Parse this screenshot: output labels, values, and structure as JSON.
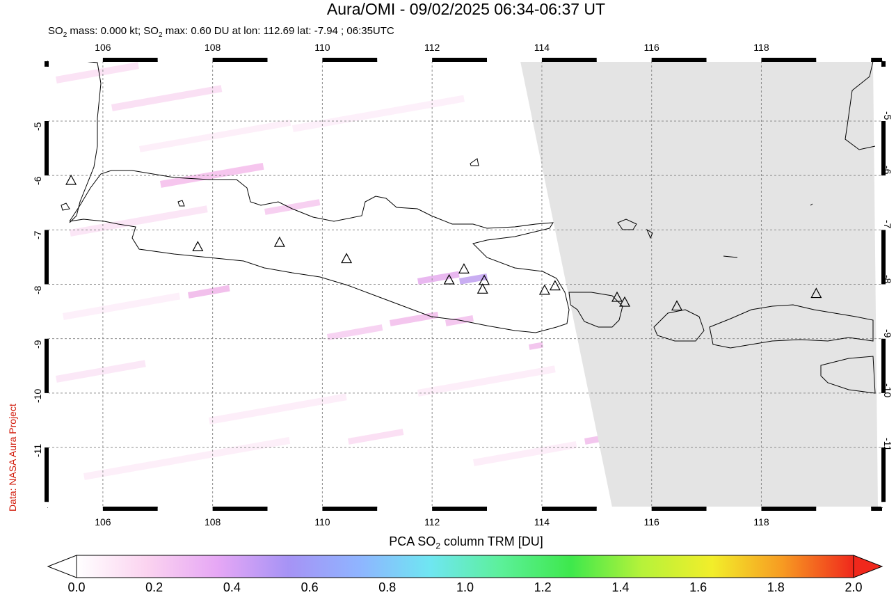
{
  "title": "Aura/OMI - 09/02/2025 06:34-06:37 UT",
  "subtitle": {
    "so2_label": "SO",
    "so2_sub": "2",
    "mass_text": " mass: 0.000 kt; SO",
    "max_text": " max: 0.60 DU at lon: 112.69 lat: -7.94 ; 06:35UTC"
  },
  "credit": "Data: NASA Aura Project",
  "map": {
    "lon_range": [
      105,
      120.2
    ],
    "lat_range": [
      -12.1,
      -3.9
    ],
    "lon_ticks": [
      "106",
      "108",
      "110",
      "112",
      "114",
      "116",
      "118"
    ],
    "lat_ticks": [
      "-5",
      "-6",
      "-7",
      "-8",
      "-9",
      "-10",
      "-11"
    ],
    "no_data_color": "#e4e4e4",
    "volcanoes": [
      {
        "lon": 105.42,
        "lat": -6.1
      },
      {
        "lon": 107.73,
        "lat": -7.32
      },
      {
        "lon": 109.22,
        "lat": -7.24
      },
      {
        "lon": 110.44,
        "lat": -7.54
      },
      {
        "lon": 112.31,
        "lat": -7.93
      },
      {
        "lon": 112.58,
        "lat": -7.73
      },
      {
        "lon": 112.95,
        "lat": -7.94
      },
      {
        "lon": 112.92,
        "lat": -8.1
      },
      {
        "lon": 114.05,
        "lat": -8.12
      },
      {
        "lon": 114.24,
        "lat": -8.04
      },
      {
        "lon": 115.37,
        "lat": -8.25
      },
      {
        "lon": 115.51,
        "lat": -8.34
      },
      {
        "lon": 116.46,
        "lat": -8.41
      },
      {
        "lon": 119.0,
        "lat": -8.18
      }
    ]
  },
  "colorbar": {
    "title_pre": "PCA SO",
    "title_sub": "2",
    "title_post": " column TRM [DU]",
    "stops": [
      "#ffffff",
      "#fbd3f0",
      "#e6a7f5",
      "#a693f5",
      "#8fb4ff",
      "#6fe6f2",
      "#5cf09a",
      "#3ee84c",
      "#b6f23a",
      "#f2ee2a",
      "#f79a22",
      "#f0281c"
    ],
    "ticks": [
      "0.0",
      "0.2",
      "0.4",
      "0.6",
      "0.8",
      "1.0",
      "1.2",
      "1.4",
      "1.6",
      "1.8",
      "2.0"
    ]
  }
}
